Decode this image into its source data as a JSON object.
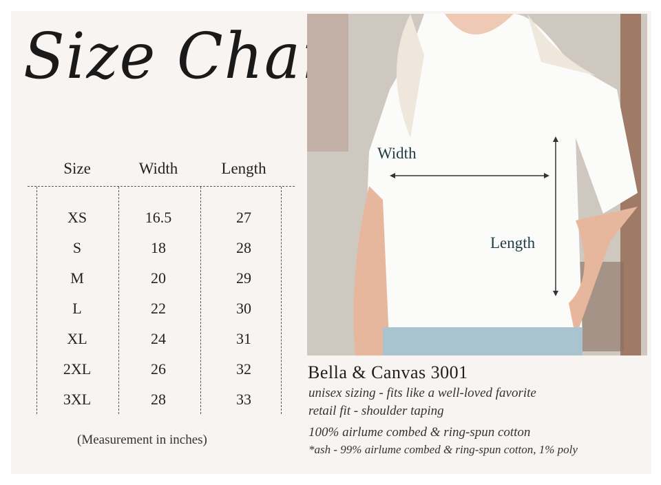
{
  "title": "Size Chart",
  "table": {
    "headers": [
      "Size",
      "Width",
      "Length"
    ],
    "rows": [
      [
        "XS",
        "16.5",
        "27"
      ],
      [
        "S",
        "18",
        "28"
      ],
      [
        "M",
        "20",
        "29"
      ],
      [
        "L",
        "22",
        "30"
      ],
      [
        "XL",
        "24",
        "31"
      ],
      [
        "2XL",
        "26",
        "32"
      ],
      [
        "3XL",
        "28",
        "33"
      ]
    ],
    "note": "(Measurement in inches)"
  },
  "photo": {
    "width_label": "Width",
    "length_label": "Length"
  },
  "product": {
    "name": "Bella & Canvas 3001",
    "lines": [
      "unisex sizing - fits like a well-loved favorite",
      "retail fit - shoulder taping",
      "100% airlume combed & ring-spun cotton",
      "*ash - 99%  airlume combed & ring-spun cotton, 1% poly"
    ]
  }
}
